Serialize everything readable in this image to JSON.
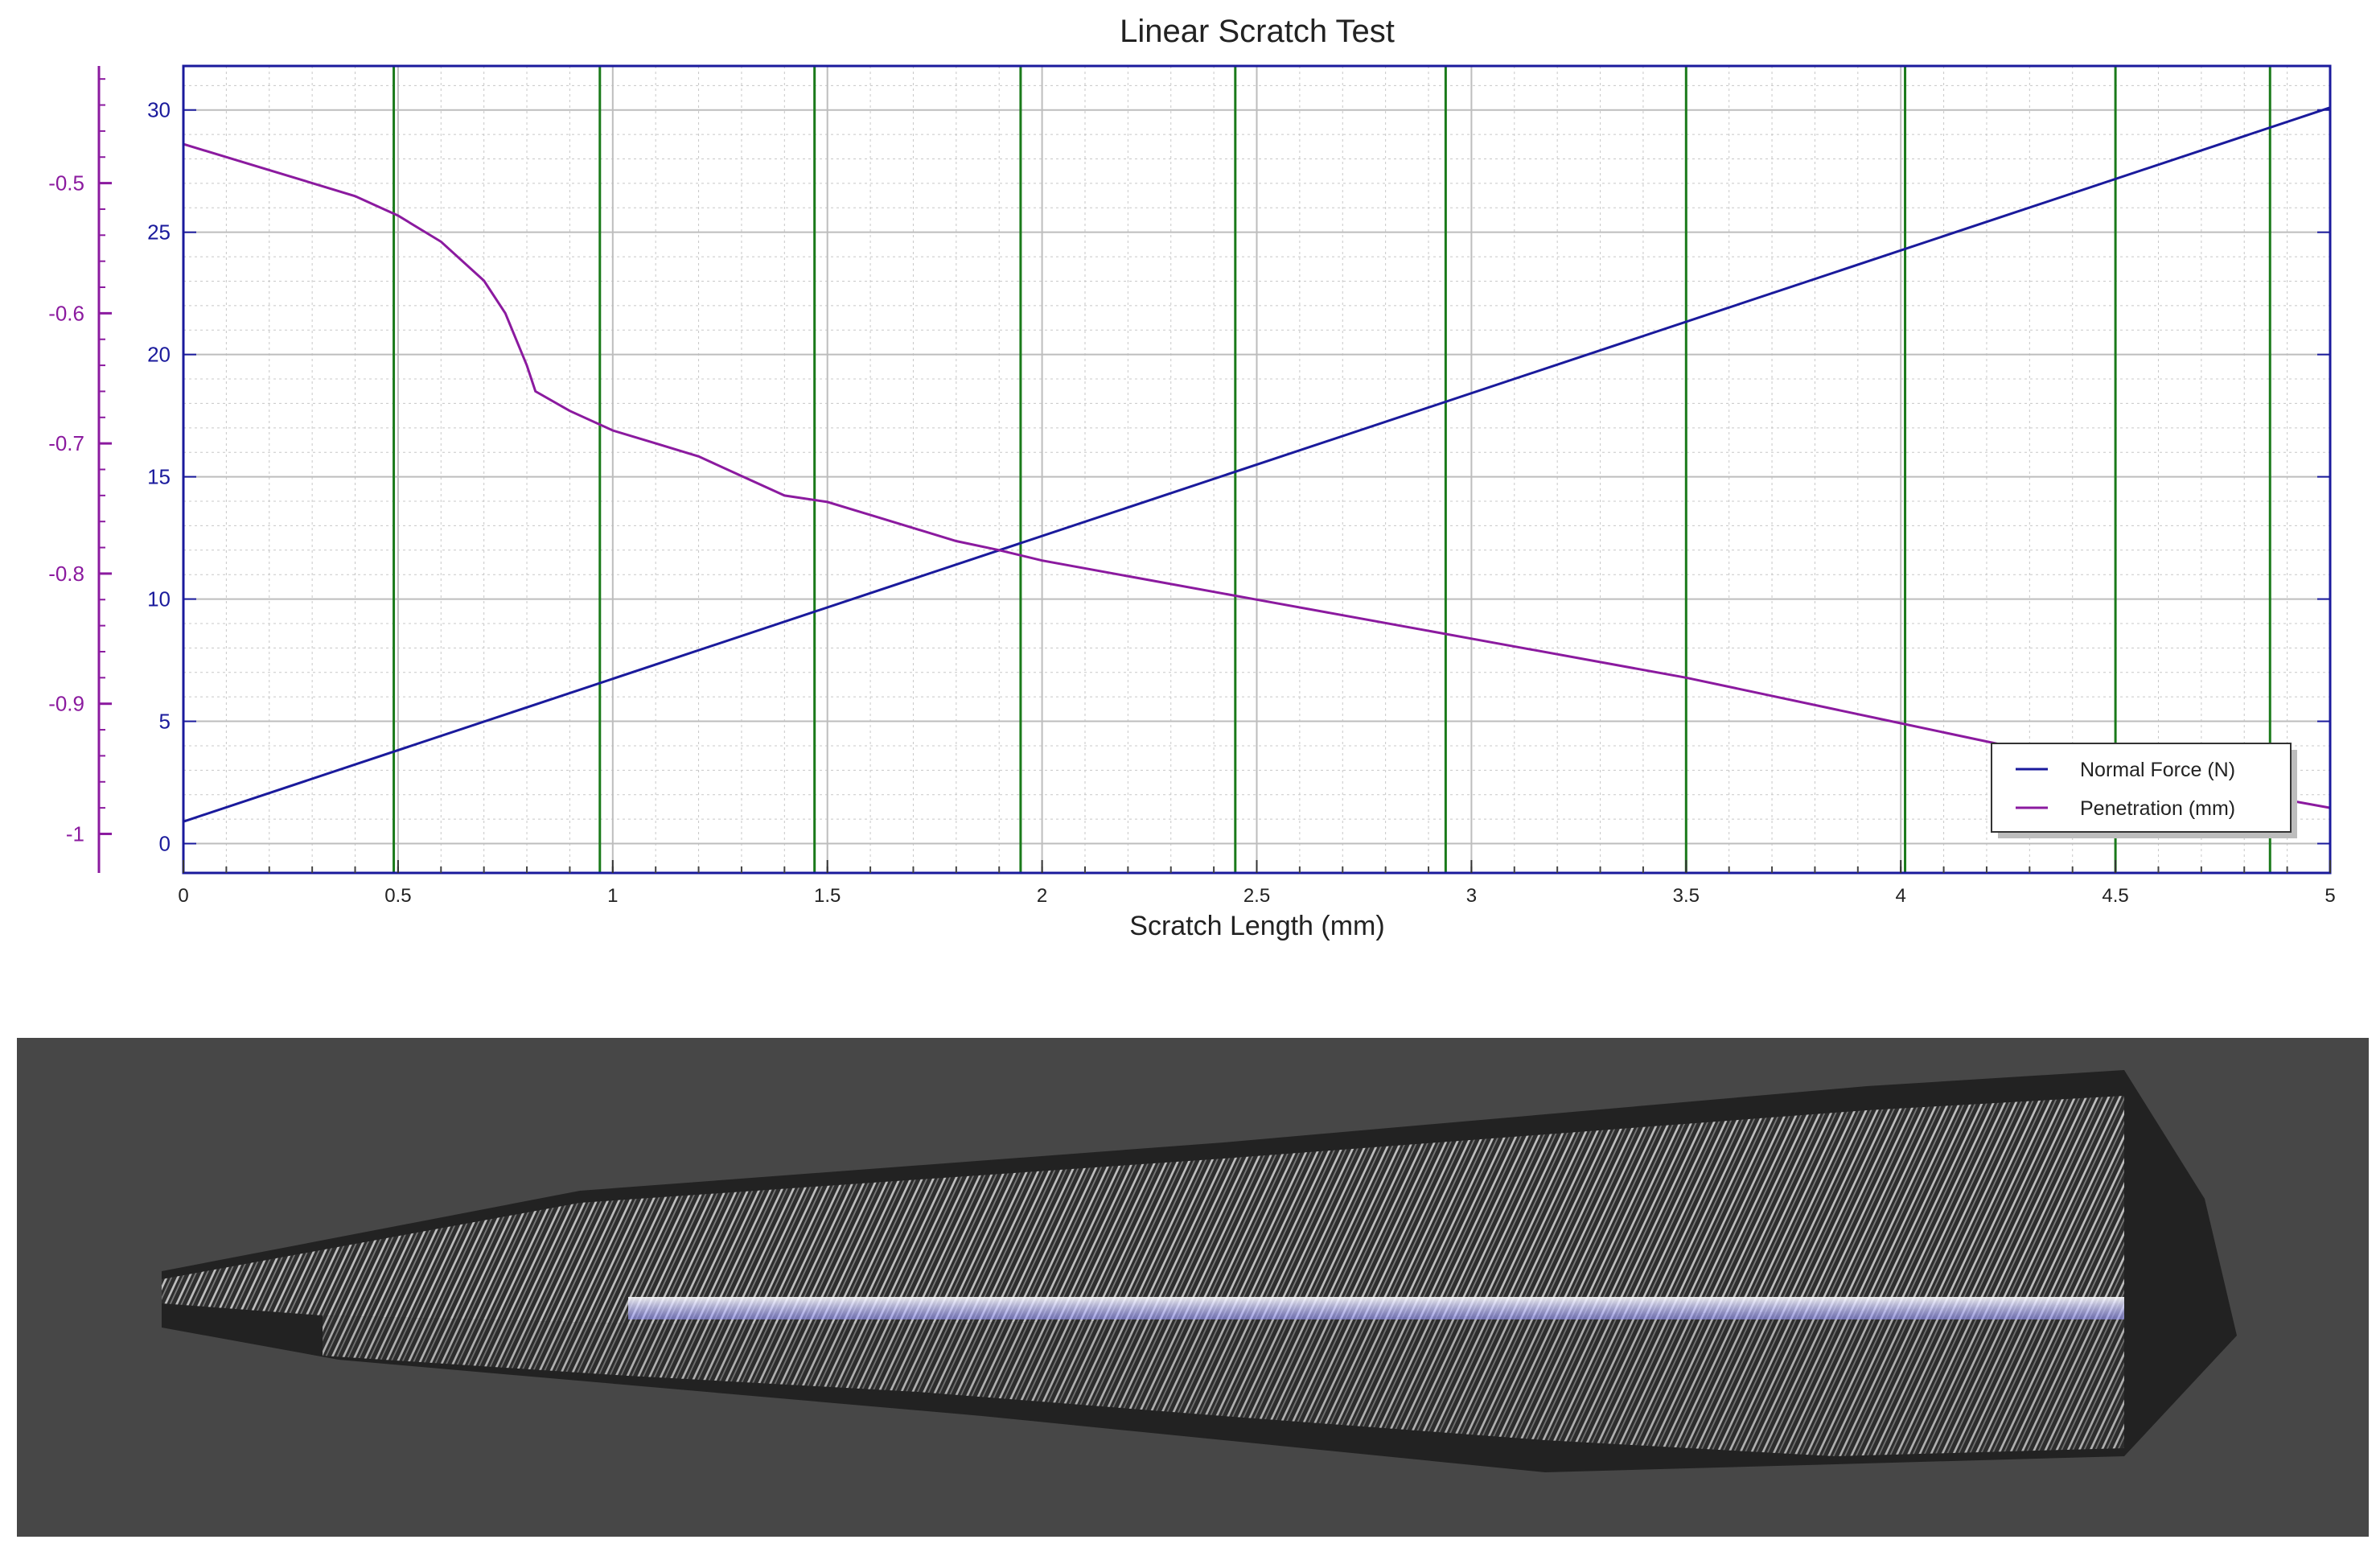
{
  "chart_data": {
    "type": "line",
    "title": "Linear Scratch Test",
    "xlabel": "Scratch Length (mm)",
    "xlim": [
      0,
      5
    ],
    "x_ticks": [
      "0",
      "0.5",
      "1",
      "1.5",
      "2",
      "2.5",
      "3",
      "3.5",
      "4",
      "4.5",
      "5"
    ],
    "y_left": {
      "series": "Normal Force (N)",
      "ylim": [
        -1.2,
        31.8
      ],
      "ticks": [
        "0",
        "5",
        "10",
        "15",
        "20",
        "25",
        "30"
      ],
      "color": "#1a1a9c"
    },
    "y_right": {
      "series": "Penetration (mm)",
      "ylim": [
        -1.03,
        -0.41
      ],
      "ticks": [
        "-0.5",
        "-0.6",
        "-0.7",
        "-0.8",
        "-0.9",
        "-1"
      ],
      "color": "#8b1a9f"
    },
    "grid": true,
    "legend_position": "bottom-right",
    "vertical_markers_x": [
      0.49,
      0.97,
      1.47,
      1.95,
      2.45,
      2.94,
      3.5,
      4.01,
      4.5,
      4.86
    ],
    "marker_color": "#1a7a1a",
    "series": [
      {
        "name": "Normal Force (N)",
        "axis": "left",
        "color": "#1a1a9c",
        "x": [
          0,
          5
        ],
        "y": [
          0.9,
          30.1
        ]
      },
      {
        "name": "Penetration (mm)",
        "axis": "right",
        "color": "#8b1a9f",
        "x": [
          0,
          0.2,
          0.4,
          0.5,
          0.6,
          0.7,
          0.75,
          0.8,
          0.82,
          0.9,
          1.0,
          1.1,
          1.2,
          1.3,
          1.4,
          1.5,
          1.6,
          1.7,
          1.8,
          1.9,
          2.0,
          2.5,
          3.0,
          3.5,
          4.0,
          4.5,
          5.0
        ],
        "y": [
          -0.47,
          -0.49,
          -0.51,
          -0.525,
          -0.545,
          -0.575,
          -0.6,
          -0.64,
          -0.66,
          -0.675,
          -0.69,
          -0.7,
          -0.71,
          -0.725,
          -0.74,
          -0.745,
          -0.755,
          -0.765,
          -0.775,
          -0.782,
          -0.79,
          -0.82,
          -0.85,
          -0.88,
          -0.915,
          -0.95,
          -0.98
        ]
      }
    ]
  }
}
